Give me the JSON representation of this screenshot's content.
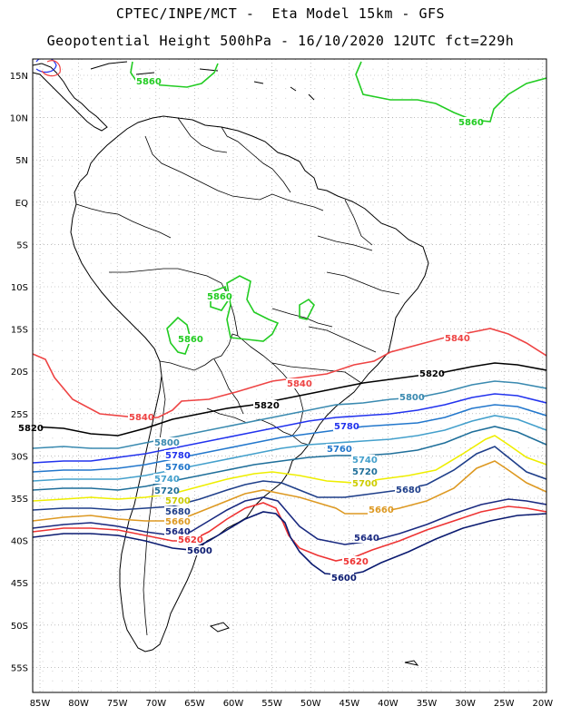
{
  "title_line1": "CPTEC/INPE/MCT -  Eta Model 15km - GFS",
  "title_line2": "Geopotential Height 500hPa - 16/10/2020 12UTC fct=229h",
  "lat_ticks": [
    "15N",
    "10N",
    "5N",
    "EQ",
    "5S",
    "10S",
    "15S",
    "20S",
    "25S",
    "30S",
    "35S",
    "40S",
    "45S",
    "50S",
    "55S"
  ],
  "lon_ticks": [
    "85W",
    "80W",
    "75W",
    "70W",
    "65W",
    "60W",
    "55W",
    "50W",
    "45W",
    "40W",
    "35W",
    "30W",
    "25W",
    "20W"
  ],
  "colors": {
    "c5860": "#22cc22",
    "c5840": "#ee4444",
    "c5820": "#000000",
    "c5800": "#3a8ab0",
    "c5780": "#2233ee",
    "c5760": "#2277cc",
    "c5740": "#44a0cc",
    "c5720": "#1f6f9a",
    "c5700": "#eeee00",
    "c5680": "#1f3f8a",
    "c5660": "#dd9922",
    "c5640": "#1a2a80",
    "c5620": "#ee3333",
    "c5600": "#0a1a70"
  },
  "contour_labels": [
    {
      "text": "5860",
      "color": "#22cc22"
    },
    {
      "text": "5860",
      "color": "#22cc22"
    },
    {
      "text": "5860",
      "color": "#22cc22"
    },
    {
      "text": "5860",
      "color": "#22cc22"
    },
    {
      "text": "5840",
      "color": "#ee4444"
    },
    {
      "text": "5840",
      "color": "#ee4444"
    },
    {
      "text": "5840",
      "color": "#ee4444"
    },
    {
      "text": "5820",
      "color": "#000000"
    },
    {
      "text": "5820",
      "color": "#000000"
    },
    {
      "text": "5820",
      "color": "#000000"
    },
    {
      "text": "5800",
      "color": "#3a8ab0"
    },
    {
      "text": "5800",
      "color": "#3a8ab0"
    },
    {
      "text": "5780",
      "color": "#2233ee"
    },
    {
      "text": "5780",
      "color": "#2233ee"
    },
    {
      "text": "5760",
      "color": "#2277cc"
    },
    {
      "text": "5760",
      "color": "#2277cc"
    },
    {
      "text": "5740",
      "color": "#44a0cc"
    },
    {
      "text": "5740",
      "color": "#44a0cc"
    },
    {
      "text": "5720",
      "color": "#1f6f9a"
    },
    {
      "text": "5720",
      "color": "#1f6f9a"
    },
    {
      "text": "5700",
      "color": "#cccc00"
    },
    {
      "text": "5700",
      "color": "#cccc00"
    },
    {
      "text": "5680",
      "color": "#1f3f8a"
    },
    {
      "text": "5680",
      "color": "#1f3f8a"
    },
    {
      "text": "5660",
      "color": "#dd9922"
    },
    {
      "text": "5660",
      "color": "#dd9922"
    },
    {
      "text": "5640",
      "color": "#1a2a80"
    },
    {
      "text": "5640",
      "color": "#1a2a80"
    },
    {
      "text": "5620",
      "color": "#ee3333"
    },
    {
      "text": "5620",
      "color": "#ee3333"
    },
    {
      "text": "5600",
      "color": "#0a1a70"
    },
    {
      "text": "5600",
      "color": "#0a1a70"
    }
  ]
}
